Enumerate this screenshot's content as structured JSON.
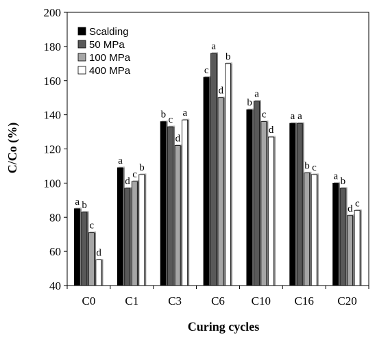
{
  "chart_data": {
    "type": "bar",
    "xlabel": "Curing cycles",
    "ylabel": "C/Co (%)",
    "ylim": [
      40,
      200
    ],
    "yticks": [
      40,
      60,
      80,
      100,
      120,
      140,
      160,
      180,
      200
    ],
    "grid": false,
    "legend_position": "top-left",
    "categories": [
      "C0",
      "C1",
      "C3",
      "C6",
      "C10",
      "C16",
      "C20"
    ],
    "series": [
      {
        "name": "Scalding",
        "color": "#000000",
        "values": [
          85,
          109,
          136,
          162,
          143,
          135,
          100
        ],
        "labels": [
          "a",
          "a",
          "b",
          "c",
          "b",
          "a",
          "a"
        ]
      },
      {
        "name": "50 MPa",
        "color": "#595959",
        "values": [
          83,
          97,
          133,
          176,
          148,
          135,
          97
        ],
        "labels": [
          "b",
          "d",
          "c",
          "a",
          "a",
          "a",
          "b"
        ]
      },
      {
        "name": "100 MPa",
        "color": "#a6a6a6",
        "values": [
          71,
          101,
          122,
          150,
          136,
          106,
          81
        ],
        "labels": [
          "c",
          "c",
          "d",
          "d",
          "c",
          "b",
          "d"
        ]
      },
      {
        "name": "400 MPa",
        "color": "#ffffff",
        "values": [
          55,
          105,
          137,
          170,
          127,
          105,
          84
        ],
        "labels": [
          "d",
          "b",
          "a",
          "b",
          "d",
          "c",
          "c"
        ]
      }
    ]
  }
}
